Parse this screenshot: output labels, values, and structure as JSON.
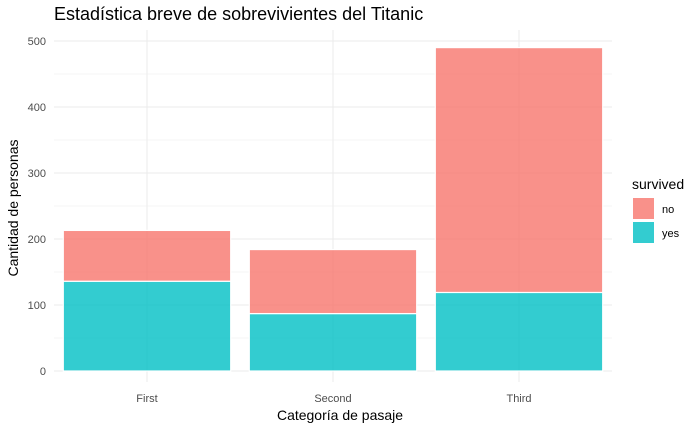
{
  "chart_data": {
    "type": "bar",
    "stacked": true,
    "title": "Estadística breve de sobrevivientes del Titanic",
    "xlabel": "Categoría de pasaje",
    "ylabel": "Cantidad de personas",
    "categories": [
      "First",
      "Second",
      "Third"
    ],
    "series": [
      {
        "name": "yes",
        "values": [
          136,
          87,
          119
        ],
        "color": "#00BFC4"
      },
      {
        "name": "no",
        "values": [
          77,
          97,
          371
        ],
        "color": "#F8766D"
      }
    ],
    "ylim": [
      0,
      515
    ],
    "yticks": [
      0,
      100,
      200,
      300,
      400,
      500
    ],
    "grid": true,
    "legend": {
      "title": "survived",
      "position": "right",
      "entries": [
        {
          "label": "no",
          "color": "#F8766D"
        },
        {
          "label": "yes",
          "color": "#00BFC4"
        }
      ]
    }
  }
}
